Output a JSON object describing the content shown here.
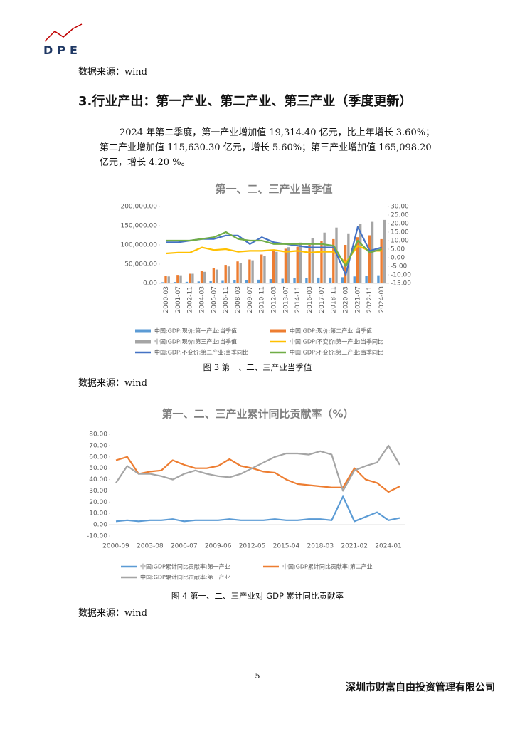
{
  "header": {
    "logo": "DPE"
  },
  "sources": [
    "数据来源：wind",
    "数据来源：wind",
    "数据来源：wind"
  ],
  "heading": "3.行业产出：第一产业、第二产业、第三产业（季度更新）",
  "paragraph": "2024 年第二季度，第一产业增加值 19,314.40 亿元，比上年增长 3.60%；第二产业增加值 115,630.30 亿元，增长 5.60%；第三产业增加值 165,098.20 亿元，增长 4.20 %。",
  "captions": [
    "图 3 第一、二、三产业当季值",
    "图 4 第一、二、三产业对 GDP 累计同比贡献率"
  ],
  "page_number": "5",
  "footer": "深圳市财富自由投资管理有限公司",
  "chart_data": [
    {
      "type": "bar",
      "title": "第一、二、三产业当季值",
      "categories": [
        "2000-03",
        "2001-07",
        "2002-11",
        "2004-03",
        "2005-07",
        "2006-11",
        "2008-03",
        "2009-07",
        "2010-11",
        "2012-03",
        "2013-07",
        "2014-11",
        "2016-03",
        "2017-07",
        "2018-11",
        "2020-03",
        "2021-07",
        "2022-11",
        "2024-03"
      ],
      "ylim": [
        0,
        200000
      ],
      "yticks": [
        {
          "value": 0,
          "label": "0.00"
        },
        {
          "value": 50000,
          "label": "50,000.00"
        },
        {
          "value": 100000,
          "label": "100,000.00"
        },
        {
          "value": 150000,
          "label": "150,000.00"
        },
        {
          "value": 200000,
          "label": "200,000.00"
        }
      ],
      "y2lim": [
        -15,
        30
      ],
      "y2ticks": [
        {
          "value": -15,
          "label": "-15.00"
        },
        {
          "value": -10,
          "label": "-10.00"
        },
        {
          "value": -5,
          "label": "-5.00"
        },
        {
          "value": 0,
          "label": "0.00"
        },
        {
          "value": 5,
          "label": "5.00"
        },
        {
          "value": 10,
          "label": "10.00"
        },
        {
          "value": 15,
          "label": "15.00"
        },
        {
          "value": 20,
          "label": "20.00"
        },
        {
          "value": 25,
          "label": "25.00"
        },
        {
          "value": 30,
          "label": "30.00"
        }
      ],
      "series": [
        {
          "name": "中国:GDP:现价:第一产业:当季值",
          "color": "#5b9bd5",
          "values": [
            3000,
            3500,
            4000,
            5000,
            5500,
            6500,
            7500,
            8500,
            9500,
            11000,
            12000,
            13000,
            14000,
            15000,
            15000,
            16000,
            18000,
            20000,
            21000
          ]
        },
        {
          "name": "中国:GDP:现价:第二产业:当季值",
          "color": "#ed7d31",
          "values": [
            19000,
            22000,
            25000,
            32000,
            40000,
            48000,
            57000,
            62000,
            75000,
            85000,
            90000,
            95000,
            100000,
            110000,
            115000,
            100000,
            120000,
            125000,
            115000
          ]
        },
        {
          "name": "中国:GDP:现价:第三产业:当季值",
          "color": "#a5a5a5",
          "values": [
            18000,
            21000,
            25000,
            30000,
            36000,
            44000,
            53000,
            60000,
            72000,
            82000,
            94000,
            106000,
            118000,
            132000,
            145000,
            130000,
            155000,
            160000,
            165000
          ]
        },
        {
          "name": "中国:GDP:不变价:第一产业:当季同比",
          "color": "#ffc000",
          "type": "line",
          "axis": "y2",
          "values": [
            2.5,
            3,
            3,
            6,
            4.5,
            5,
            3.5,
            4,
            4,
            4.5,
            3.5,
            4,
            3,
            3.5,
            3.5,
            -3,
            7,
            4,
            4
          ]
        },
        {
          "name": "中国:GDP:不变价:第二产业:当季同比",
          "color": "#4472c4",
          "type": "line",
          "axis": "y2",
          "values": [
            9,
            9,
            10,
            11,
            11,
            13,
            13,
            8,
            12,
            9,
            8,
            7,
            6,
            6,
            6,
            -10,
            18,
            4,
            6
          ]
        },
        {
          "name": "中国:GDP:不变价:第三产业:当季同比",
          "color": "#70ad47",
          "type": "line",
          "axis": "y2",
          "values": [
            10,
            10,
            10,
            11,
            12,
            15,
            11,
            10,
            10,
            8,
            8,
            8,
            8,
            8,
            7,
            -5,
            10,
            3,
            5
          ]
        }
      ]
    },
    {
      "type": "line",
      "title": "第一、二、三产业累计同比贡献率（%）",
      "categories": [
        "2000-09",
        null,
        null,
        "2003-08",
        null,
        null,
        "2006-07",
        null,
        null,
        "2009-06",
        null,
        null,
        "2012-05",
        null,
        null,
        "2015-04",
        null,
        null,
        "2018-03",
        null,
        null,
        "2021-02",
        null,
        null,
        "2024-01",
        null
      ],
      "ylim": [
        -10,
        80
      ],
      "yticks": [
        {
          "value": -10,
          "label": "-10.00"
        },
        {
          "value": 0,
          "label": "0.00"
        },
        {
          "value": 10,
          "label": "10.00"
        },
        {
          "value": 20,
          "label": "20.00"
        },
        {
          "value": 30,
          "label": "30.00"
        },
        {
          "value": 40,
          "label": "40.00"
        },
        {
          "value": 50,
          "label": "50.00"
        },
        {
          "value": 60,
          "label": "60.00"
        },
        {
          "value": 70,
          "label": "70.00"
        },
        {
          "value": 80,
          "label": "80.00"
        }
      ],
      "series": [
        {
          "name": "中国:GDP累计同比贡献率:第一产业",
          "color": "#5b9bd5",
          "values": [
            3,
            4,
            3,
            4,
            4,
            5,
            3,
            4,
            4,
            4,
            5,
            4,
            4,
            4,
            5,
            4,
            4,
            5,
            5,
            4,
            25,
            3,
            7,
            11,
            4,
            6
          ]
        },
        {
          "name": "中国:GDP累计同比贡献率:第二产业",
          "color": "#ed7d31",
          "values": [
            57,
            60,
            45,
            47,
            48,
            57,
            53,
            50,
            50,
            52,
            58,
            52,
            50,
            47,
            46,
            40,
            36,
            35,
            34,
            33,
            33,
            50,
            40,
            37,
            29,
            34
          ]
        },
        {
          "name": "中国:GDP累计同比贡献率:第三产业",
          "color": "#a5a5a5",
          "values": [
            37,
            52,
            45,
            45,
            43,
            40,
            45,
            48,
            45,
            43,
            42,
            45,
            50,
            55,
            60,
            63,
            63,
            62,
            65,
            62,
            30,
            48,
            52,
            55,
            70,
            53
          ]
        }
      ]
    }
  ]
}
